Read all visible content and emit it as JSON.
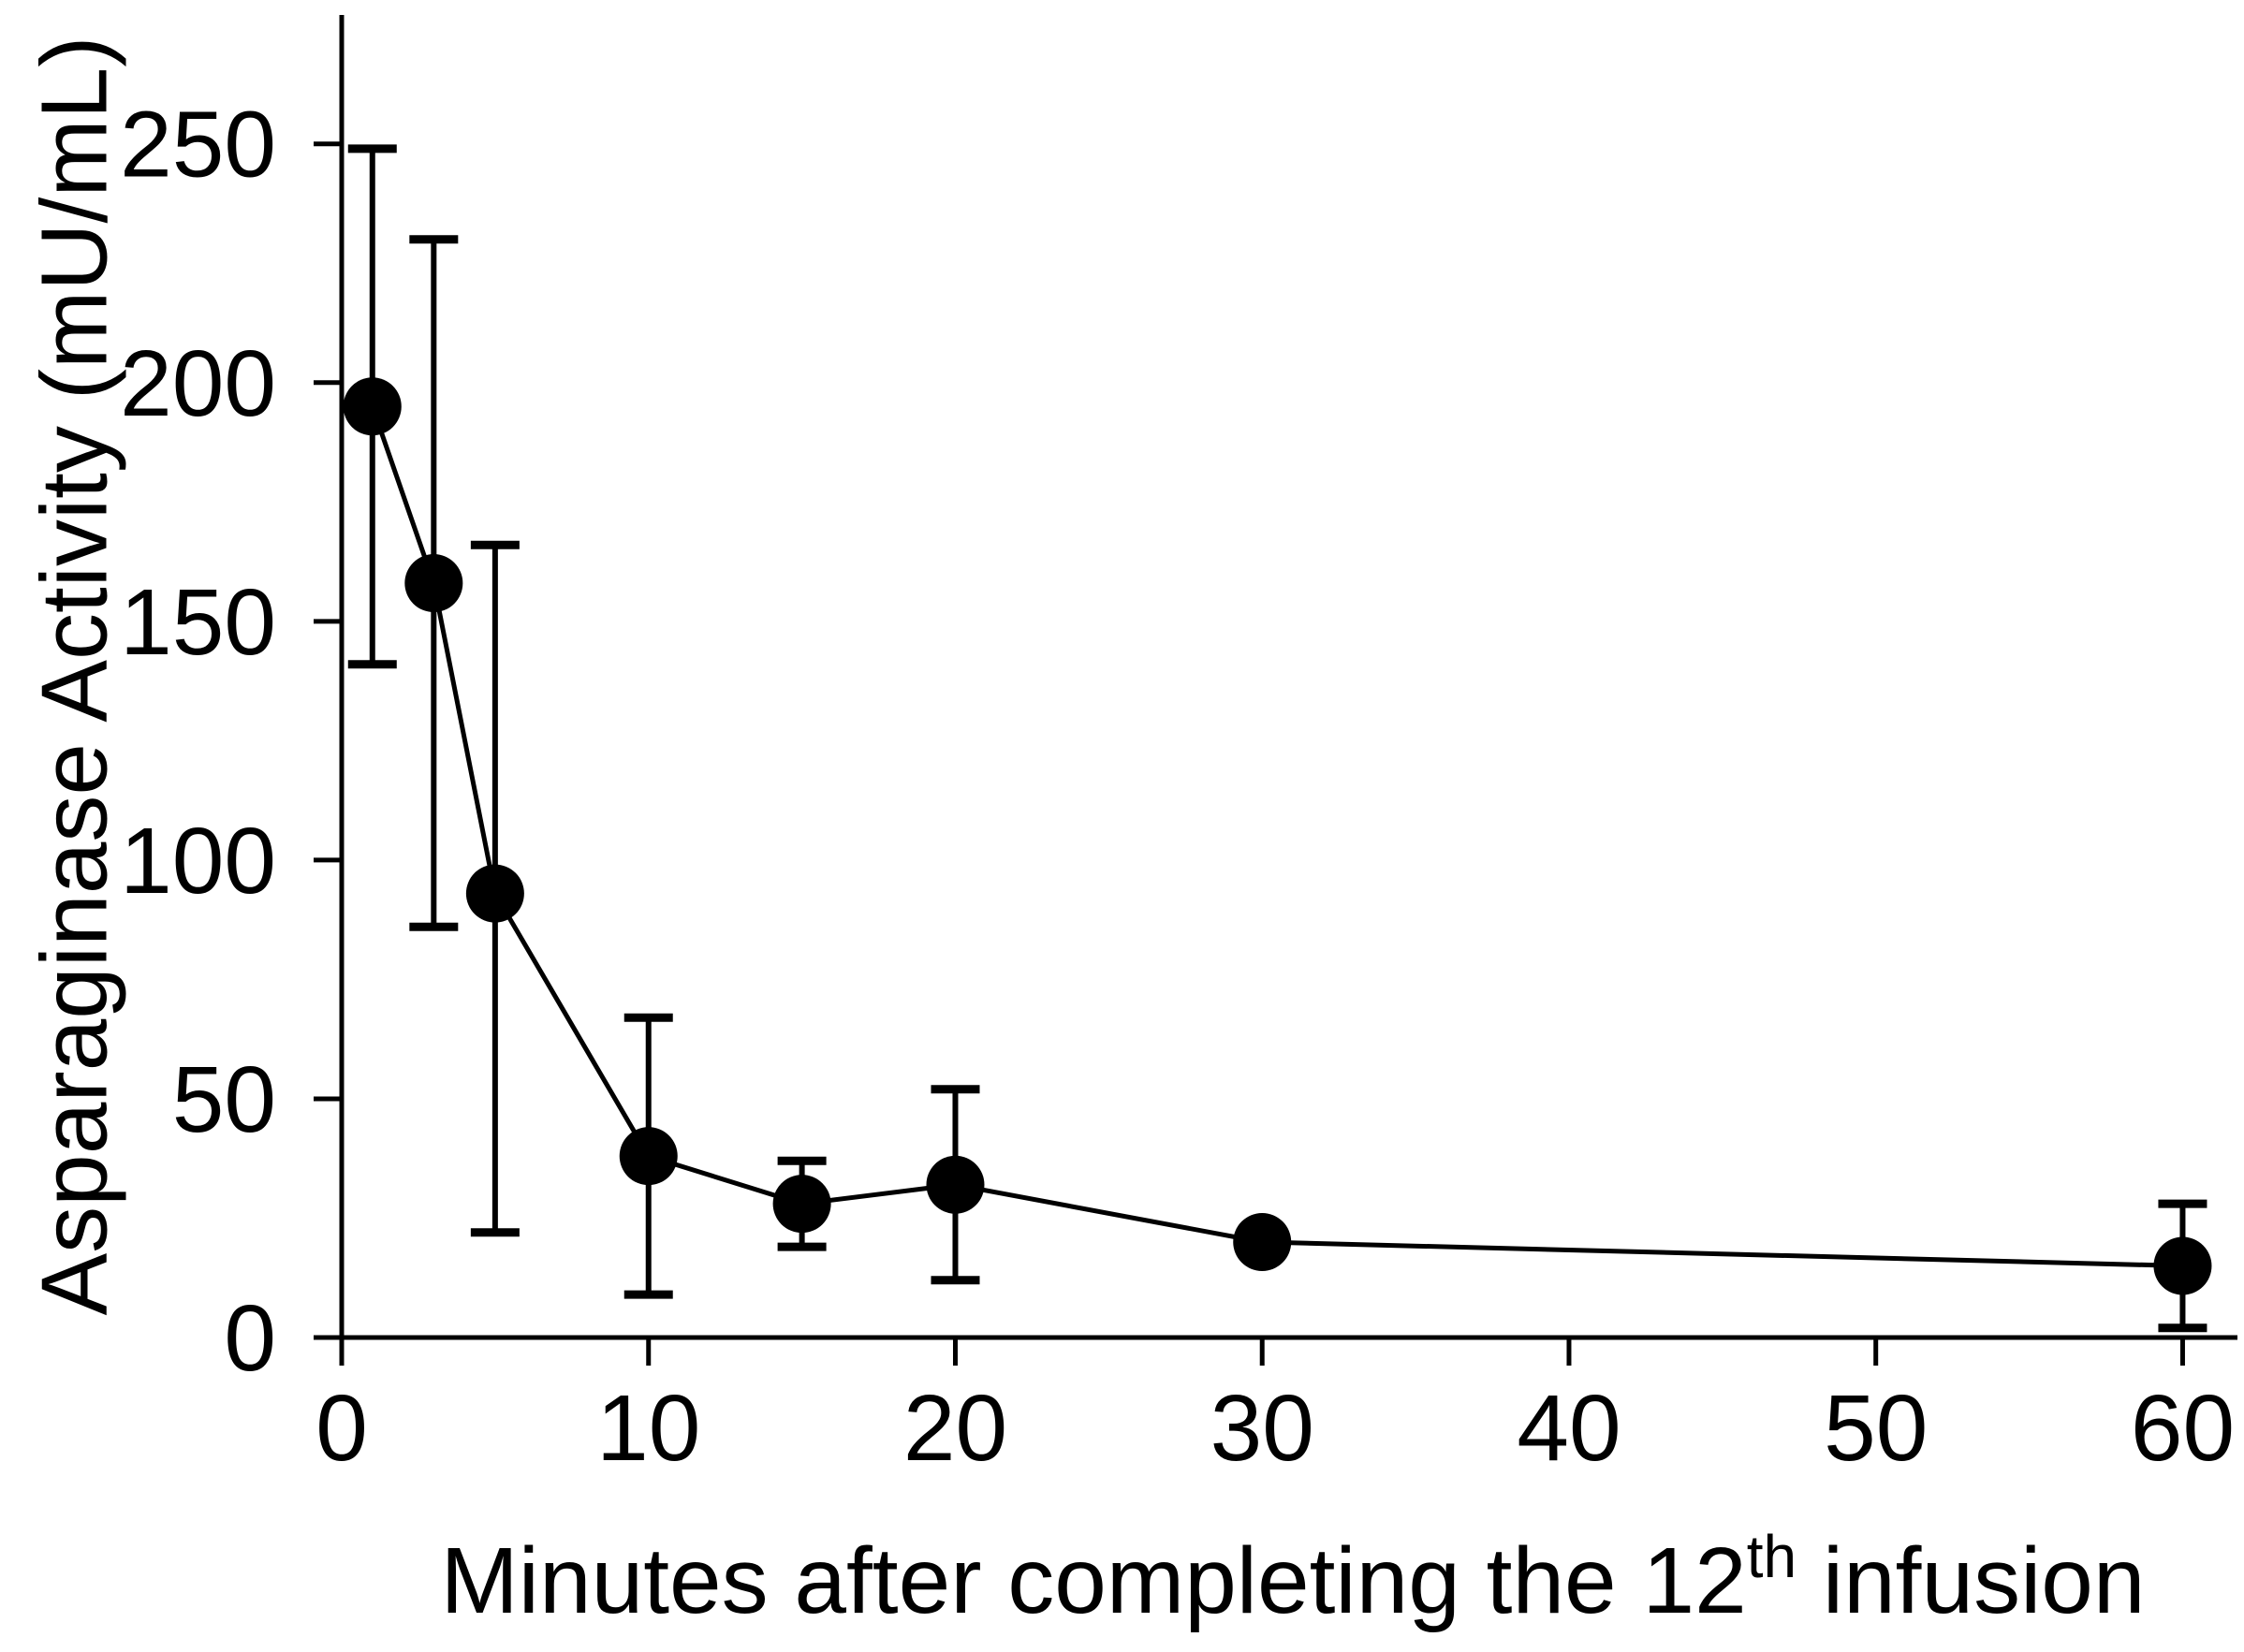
{
  "figure": {
    "background": "#ffffff",
    "ink": "#000000"
  },
  "chart_data": {
    "type": "line",
    "title": "",
    "xlabel_main": "Minutes after completing the 12",
    "xlabel_superscript": "th",
    "xlabel_suffix": " infusion",
    "ylabel": "Asparaginase Activity (mU/mL)",
    "x_ticks": [
      0,
      10,
      20,
      30,
      40,
      50,
      60
    ],
    "y_ticks": [
      0,
      50,
      100,
      150,
      200,
      250
    ],
    "xlim": [
      0,
      62
    ],
    "ylim": [
      0,
      277
    ],
    "grid": false,
    "legend": "none",
    "error_bars": true,
    "marker": "filled-circle",
    "series": [
      {
        "name": "Asparaginase activity",
        "color": "#000000",
        "x": [
          1,
          3,
          5,
          10,
          15,
          20,
          30,
          60
        ],
        "y": [
          195,
          158,
          93,
          38,
          28,
          32,
          20,
          15
        ],
        "y_err_low": [
          141,
          86,
          22,
          9,
          19,
          12,
          null,
          2
        ],
        "y_err_high": [
          249,
          230,
          166,
          67,
          37,
          52,
          null,
          28
        ]
      }
    ]
  }
}
